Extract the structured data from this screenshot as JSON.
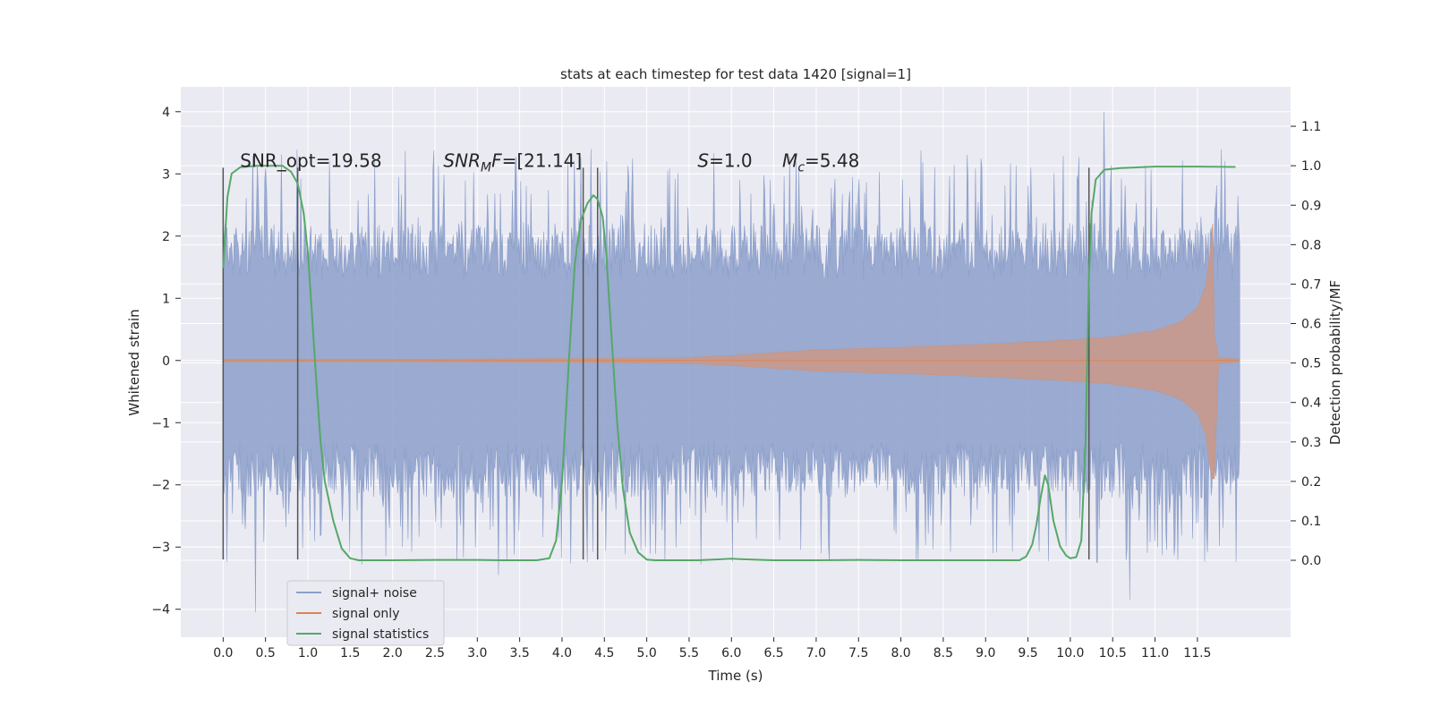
{
  "chart_data": {
    "type": "line",
    "title": "stats at each timestep for test data 1420 [signal=1]",
    "xlabel": "Time (s)",
    "ylabel": "Whitened strain",
    "y2label": "Detection probability/MF",
    "xlim": [
      -0.5,
      12.6
    ],
    "ylim": [
      -4.45,
      4.4
    ],
    "y2lim": [
      -0.195,
      1.2
    ],
    "x_ticks": [
      0.0,
      0.5,
      1.0,
      1.5,
      2.0,
      2.5,
      3.0,
      3.5,
      4.0,
      4.5,
      5.0,
      5.5,
      6.0,
      6.5,
      7.0,
      7.5,
      8.0,
      8.5,
      9.0,
      9.5,
      10.0,
      10.5,
      11.0,
      11.5
    ],
    "x_tick_labels": [
      "0.0",
      "0.5",
      "1.0",
      "1.5",
      "2.0",
      "2.5",
      "3.0",
      "3.5",
      "4.0",
      "4.5",
      "5.0",
      "5.5",
      "6.0",
      "6.5",
      "7.0",
      "7.5",
      "8.0",
      "8.5",
      "9.0",
      "9.5",
      "10.0",
      "10.5",
      "11.0",
      "11.5"
    ],
    "y_ticks": [
      -4,
      -3,
      -2,
      -1,
      0,
      1,
      2,
      3,
      4
    ],
    "y_tick_labels": [
      "−4",
      "−3",
      "−2",
      "−1",
      "0",
      "1",
      "2",
      "3",
      "4"
    ],
    "y2_ticks": [
      0.0,
      0.1,
      0.2,
      0.3,
      0.4,
      0.5,
      0.6,
      0.7,
      0.8,
      0.9,
      1.0,
      1.1
    ],
    "y2_tick_labels": [
      "0.0",
      "0.1",
      "0.2",
      "0.3",
      "0.4",
      "0.5",
      "0.6",
      "0.7",
      "0.8",
      "0.9",
      "1.0",
      "1.1"
    ],
    "grid": true,
    "legend_position": "lower-left",
    "series": [
      {
        "name": "signal+ noise",
        "axis": "left",
        "color": "#8c9fca",
        "kind": "noise-band",
        "x_range": [
          0.0,
          12.0
        ],
        "core_amplitude": 1.3,
        "peak_amplitude_range": [
          2.0,
          3.4
        ],
        "notable_peaks": [
          {
            "x": 0.38,
            "y": -4.05
          },
          {
            "x": 3.25,
            "y": -3.45
          },
          {
            "x": 10.4,
            "y": 4.0
          },
          {
            "x": 10.7,
            "y": -3.85
          },
          {
            "x": 8.2,
            "y": -3.2
          }
        ]
      },
      {
        "name": "signal only",
        "axis": "left",
        "color": "#dd8452",
        "kind": "chirp-envelope",
        "points": [
          [
            0.0,
            0.02
          ],
          [
            2.0,
            0.02
          ],
          [
            4.0,
            0.03
          ],
          [
            5.5,
            0.05
          ],
          [
            6.0,
            0.08
          ],
          [
            7.0,
            0.17
          ],
          [
            8.0,
            0.21
          ],
          [
            9.0,
            0.26
          ],
          [
            10.0,
            0.33
          ],
          [
            10.5,
            0.38
          ],
          [
            11.0,
            0.48
          ],
          [
            11.3,
            0.62
          ],
          [
            11.5,
            0.85
          ],
          [
            11.6,
            1.2
          ],
          [
            11.65,
            1.75
          ],
          [
            11.68,
            2.2
          ],
          [
            11.7,
            0.4
          ],
          [
            11.75,
            0.05
          ],
          [
            12.0,
            0.02
          ]
        ]
      },
      {
        "name": "signal statistics",
        "axis": "right",
        "color": "#55a868",
        "kind": "line",
        "points": [
          [
            0.0,
            0.74
          ],
          [
            0.05,
            0.92
          ],
          [
            0.1,
            0.98
          ],
          [
            0.2,
            0.996
          ],
          [
            0.4,
            1.0
          ],
          [
            0.7,
            1.0
          ],
          [
            0.8,
            0.985
          ],
          [
            0.88,
            0.955
          ],
          [
            0.95,
            0.88
          ],
          [
            1.0,
            0.78
          ],
          [
            1.05,
            0.62
          ],
          [
            1.1,
            0.45
          ],
          [
            1.15,
            0.3
          ],
          [
            1.2,
            0.2
          ],
          [
            1.3,
            0.1
          ],
          [
            1.4,
            0.03
          ],
          [
            1.5,
            0.005
          ],
          [
            1.6,
            0.0
          ],
          [
            2.0,
            0.0
          ],
          [
            2.5,
            0.001
          ],
          [
            3.0,
            0.001
          ],
          [
            3.3,
            0.0
          ],
          [
            3.7,
            0.0
          ],
          [
            3.85,
            0.005
          ],
          [
            3.93,
            0.05
          ],
          [
            4.0,
            0.2
          ],
          [
            4.08,
            0.5
          ],
          [
            4.15,
            0.75
          ],
          [
            4.22,
            0.86
          ],
          [
            4.3,
            0.905
          ],
          [
            4.37,
            0.925
          ],
          [
            4.42,
            0.915
          ],
          [
            4.48,
            0.87
          ],
          [
            4.52,
            0.78
          ],
          [
            4.58,
            0.58
          ],
          [
            4.65,
            0.35
          ],
          [
            4.72,
            0.18
          ],
          [
            4.8,
            0.07
          ],
          [
            4.9,
            0.02
          ],
          [
            5.0,
            0.002
          ],
          [
            5.1,
            0.0
          ],
          [
            5.6,
            0.0
          ],
          [
            5.9,
            0.003
          ],
          [
            6.0,
            0.004
          ],
          [
            6.1,
            0.003
          ],
          [
            6.5,
            0.0
          ],
          [
            7.0,
            0.0
          ],
          [
            7.5,
            0.001
          ],
          [
            8.0,
            0.0
          ],
          [
            8.5,
            0.0
          ],
          [
            9.0,
            0.0
          ],
          [
            9.4,
            0.0
          ],
          [
            9.48,
            0.01
          ],
          [
            9.55,
            0.04
          ],
          [
            9.6,
            0.09
          ],
          [
            9.65,
            0.16
          ],
          [
            9.7,
            0.215
          ],
          [
            9.74,
            0.19
          ],
          [
            9.8,
            0.1
          ],
          [
            9.88,
            0.035
          ],
          [
            9.95,
            0.012
          ],
          [
            10.0,
            0.005
          ],
          [
            10.07,
            0.008
          ],
          [
            10.13,
            0.05
          ],
          [
            10.18,
            0.3
          ],
          [
            10.22,
            0.72
          ],
          [
            10.25,
            0.88
          ],
          [
            10.3,
            0.965
          ],
          [
            10.4,
            0.99
          ],
          [
            10.6,
            0.994
          ],
          [
            11.0,
            0.998
          ],
          [
            11.5,
            0.998
          ],
          [
            11.95,
            0.997
          ]
        ]
      }
    ],
    "vlines_x": [
      0.0,
      0.88,
      4.25,
      4.42,
      10.22
    ],
    "vlines_y_range": [
      -3.2,
      3.1
    ],
    "vlines_color": "#555555",
    "annotations": [
      {
        "text": "SNR_opt=19.58",
        "x": 0.2,
        "y": 3.2
      },
      {
        "text": "=[21.14]",
        "math_prefix": "SNR",
        "math_sub": "M",
        "math_suffix": "F",
        "x": 2.6,
        "y": 3.2
      },
      {
        "text": "=1.0",
        "math_prefix": "S",
        "x": 5.6,
        "y": 3.2
      },
      {
        "text": "=5.48",
        "math_prefix": "M",
        "math_sub": "c",
        "x": 6.6,
        "y": 3.2
      }
    ],
    "legend": [
      {
        "label": "signal+ noise",
        "color": "#8c9fca"
      },
      {
        "label": "signal only",
        "color": "#dd8452"
      },
      {
        "label": "signal statistics",
        "color": "#55a868"
      }
    ]
  },
  "style": {
    "plot_background": "#eaeaf2",
    "grid_color": "#ffffff",
    "text_color": "#262626"
  }
}
